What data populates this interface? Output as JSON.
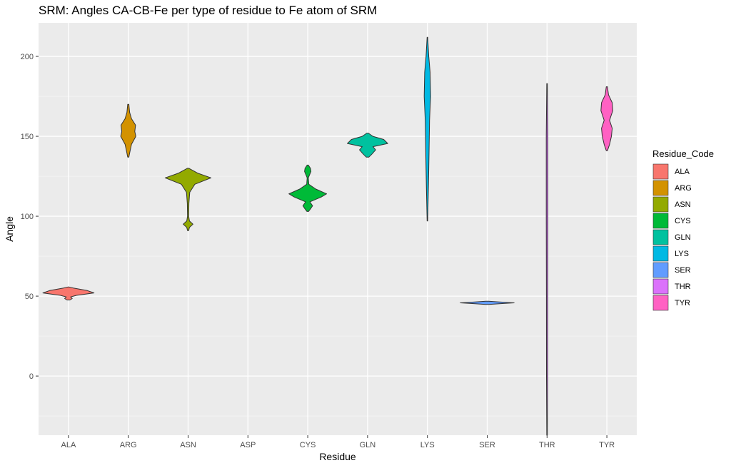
{
  "chart_data": {
    "type": "violin",
    "title": "SRM: Angles CA-CB-Fe per type of residue to Fe atom of SRM",
    "xlabel": "Residue",
    "ylabel": "Angle",
    "ylim": [
      -37,
      221
    ],
    "yticks": [
      0,
      50,
      100,
      150,
      200
    ],
    "categories": [
      "ALA",
      "ARG",
      "ASN",
      "ASP",
      "CYS",
      "GLN",
      "LYS",
      "SER",
      "THR",
      "TYR"
    ],
    "grid": true,
    "legend": {
      "title": "Residue_Code",
      "position": "right",
      "entries": [
        "ALA",
        "ARG",
        "ASN",
        "CYS",
        "GLN",
        "LYS",
        "SER",
        "THR",
        "TYR"
      ]
    },
    "colors": {
      "ALA": "#F8766D",
      "ARG": "#D39200",
      "ASN": "#93AA00",
      "CYS": "#00BA38",
      "GLN": "#00C19F",
      "LYS": "#00B9E3",
      "SER": "#619CFF",
      "THR": "#DB72FB",
      "TYR": "#FF61C3"
    },
    "violins": [
      {
        "category": "ALA",
        "min": 47.6,
        "max": 55.7,
        "profile": [
          [
            47.6,
            0.05
          ],
          [
            48.5,
            0.14
          ],
          [
            49.5,
            0.08
          ],
          [
            50.5,
            0.3
          ],
          [
            52,
            0.95
          ],
          [
            53.5,
            0.7
          ],
          [
            55,
            0.2
          ],
          [
            55.7,
            0.02
          ]
        ]
      },
      {
        "category": "ARG",
        "min": 137,
        "max": 170,
        "profile": [
          [
            137,
            0.02
          ],
          [
            141,
            0.07
          ],
          [
            145,
            0.12
          ],
          [
            150,
            0.28
          ],
          [
            153,
            0.24
          ],
          [
            157,
            0.27
          ],
          [
            161,
            0.12
          ],
          [
            165,
            0.05
          ],
          [
            170,
            0.02
          ]
        ]
      },
      {
        "category": "ASN",
        "min": 91,
        "max": 130,
        "profile": [
          [
            91,
            0.02
          ],
          [
            93,
            0.05
          ],
          [
            95,
            0.18
          ],
          [
            97,
            0.05
          ],
          [
            100,
            0.02
          ],
          [
            108,
            0.03
          ],
          [
            115,
            0.06
          ],
          [
            120,
            0.25
          ],
          [
            124,
            0.85
          ],
          [
            127,
            0.35
          ],
          [
            130,
            0.03
          ]
        ]
      },
      {
        "category": "CYS",
        "min": 103,
        "max": 132,
        "profile": [
          [
            103,
            0.03
          ],
          [
            105,
            0.12
          ],
          [
            106.5,
            0.18
          ],
          [
            109,
            0.08
          ],
          [
            112,
            0.5
          ],
          [
            114,
            0.7
          ],
          [
            117,
            0.3
          ],
          [
            120,
            0.04
          ],
          [
            124,
            0.02
          ],
          [
            128,
            0.12
          ],
          [
            130,
            0.1
          ],
          [
            132,
            0.02
          ]
        ]
      },
      {
        "category": "GLN",
        "min": 137,
        "max": 152,
        "profile": [
          [
            137,
            0.05
          ],
          [
            139,
            0.17
          ],
          [
            141.5,
            0.3
          ],
          [
            143.5,
            0.2
          ],
          [
            145.5,
            0.75
          ],
          [
            148,
            0.6
          ],
          [
            150,
            0.2
          ],
          [
            152,
            0.03
          ]
        ]
      },
      {
        "category": "LYS",
        "min": 97,
        "max": 212,
        "profile": [
          [
            97,
            0.01
          ],
          [
            120,
            0.04
          ],
          [
            140,
            0.06
          ],
          [
            160,
            0.08
          ],
          [
            175,
            0.12
          ],
          [
            190,
            0.1
          ],
          [
            200,
            0.05
          ],
          [
            212,
            0.01
          ]
        ]
      },
      {
        "category": "SER",
        "min": 44.8,
        "max": 46.8,
        "profile": [
          [
            44.8,
            0.05
          ],
          [
            45.3,
            0.5
          ],
          [
            45.8,
            1.0
          ],
          [
            46.3,
            0.5
          ],
          [
            46.8,
            0.05
          ]
        ]
      },
      {
        "category": "THR",
        "min": -37,
        "max": 183,
        "profile": [
          [
            -37,
            0.01
          ],
          [
            0,
            0.02
          ],
          [
            50,
            0.025
          ],
          [
            100,
            0.03
          ],
          [
            150,
            0.03
          ],
          [
            183,
            0.01
          ]
        ]
      },
      {
        "category": "TYR",
        "min": 141,
        "max": 181,
        "profile": [
          [
            141,
            0.02
          ],
          [
            145,
            0.1
          ],
          [
            150,
            0.17
          ],
          [
            155,
            0.2
          ],
          [
            160,
            0.1
          ],
          [
            163,
            0.16
          ],
          [
            166,
            0.22
          ],
          [
            171,
            0.2
          ],
          [
            176,
            0.06
          ],
          [
            181,
            0.02
          ]
        ]
      }
    ]
  }
}
